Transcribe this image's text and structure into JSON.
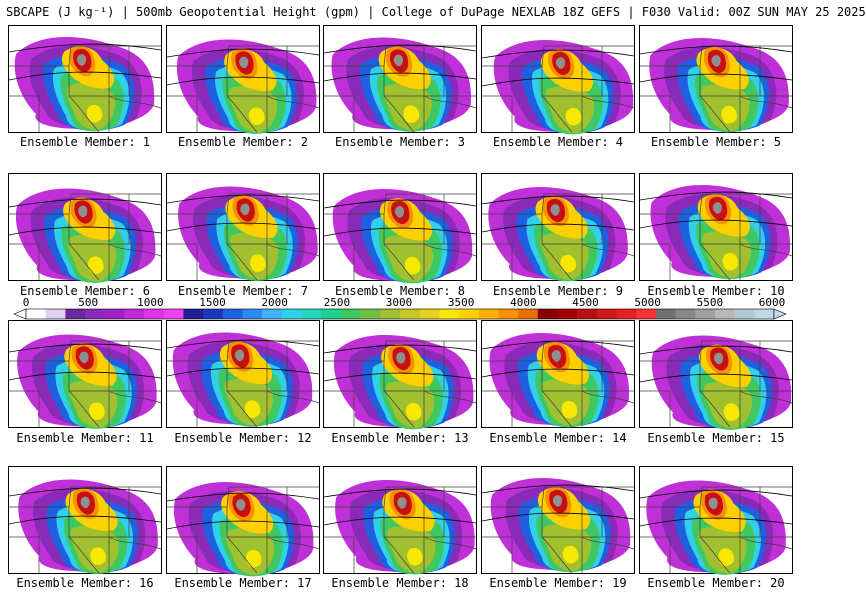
{
  "title": "SBCAPE (J kg⁻¹) | 500mb Geopotential Height (gpm) | College of DuPage NEXLAB 18Z GEFS | F030 Valid: 00Z SUN MAY 25 2025",
  "panels": [
    {
      "label": "Ensemble Member: 1"
    },
    {
      "label": "Ensemble Member: 2"
    },
    {
      "label": "Ensemble Member: 3"
    },
    {
      "label": "Ensemble Member: 4"
    },
    {
      "label": "Ensemble Member: 5"
    },
    {
      "label": "Ensemble Member: 6"
    },
    {
      "label": "Ensemble Member: 7"
    },
    {
      "label": "Ensemble Member: 8"
    },
    {
      "label": "Ensemble Member: 9"
    },
    {
      "label": "Ensemble Member: 10"
    },
    {
      "label": "Ensemble Member: 11"
    },
    {
      "label": "Ensemble Member: 12"
    },
    {
      "label": "Ensemble Member: 13"
    },
    {
      "label": "Ensemble Member: 14"
    },
    {
      "label": "Ensemble Member: 15"
    },
    {
      "label": "Ensemble Member: 16"
    },
    {
      "label": "Ensemble Member: 17"
    },
    {
      "label": "Ensemble Member: 18"
    },
    {
      "label": "Ensemble Member: 19"
    },
    {
      "label": "Ensemble Member: 20"
    }
  ],
  "colorbar": {
    "ticks": [
      "0",
      "500",
      "1000",
      "1500",
      "2000",
      "2500",
      "3000",
      "3500",
      "4000",
      "4500",
      "5000",
      "5500",
      "6000"
    ],
    "colors": [
      "#ffffff",
      "#e0d0f0",
      "#6a2a9a",
      "#8a2ab8",
      "#a020c8",
      "#c028d8",
      "#e030e8",
      "#f040f0",
      "#202090",
      "#1838c0",
      "#1e60e0",
      "#2a8af0",
      "#40b0f8",
      "#30d0e8",
      "#20d8c0",
      "#20d090",
      "#40c860",
      "#70c040",
      "#a0c030",
      "#c8c828",
      "#e8d020",
      "#f8e800",
      "#ffd000",
      "#ffb000",
      "#f89000",
      "#e87000",
      "#8a0000",
      "#a00000",
      "#b81010",
      "#d01818",
      "#e82020",
      "#ff3030",
      "#707070",
      "#888888",
      "#a0a0a0",
      "#b8b8b8",
      "#b0c8d8",
      "#c0d8e8"
    ]
  }
}
